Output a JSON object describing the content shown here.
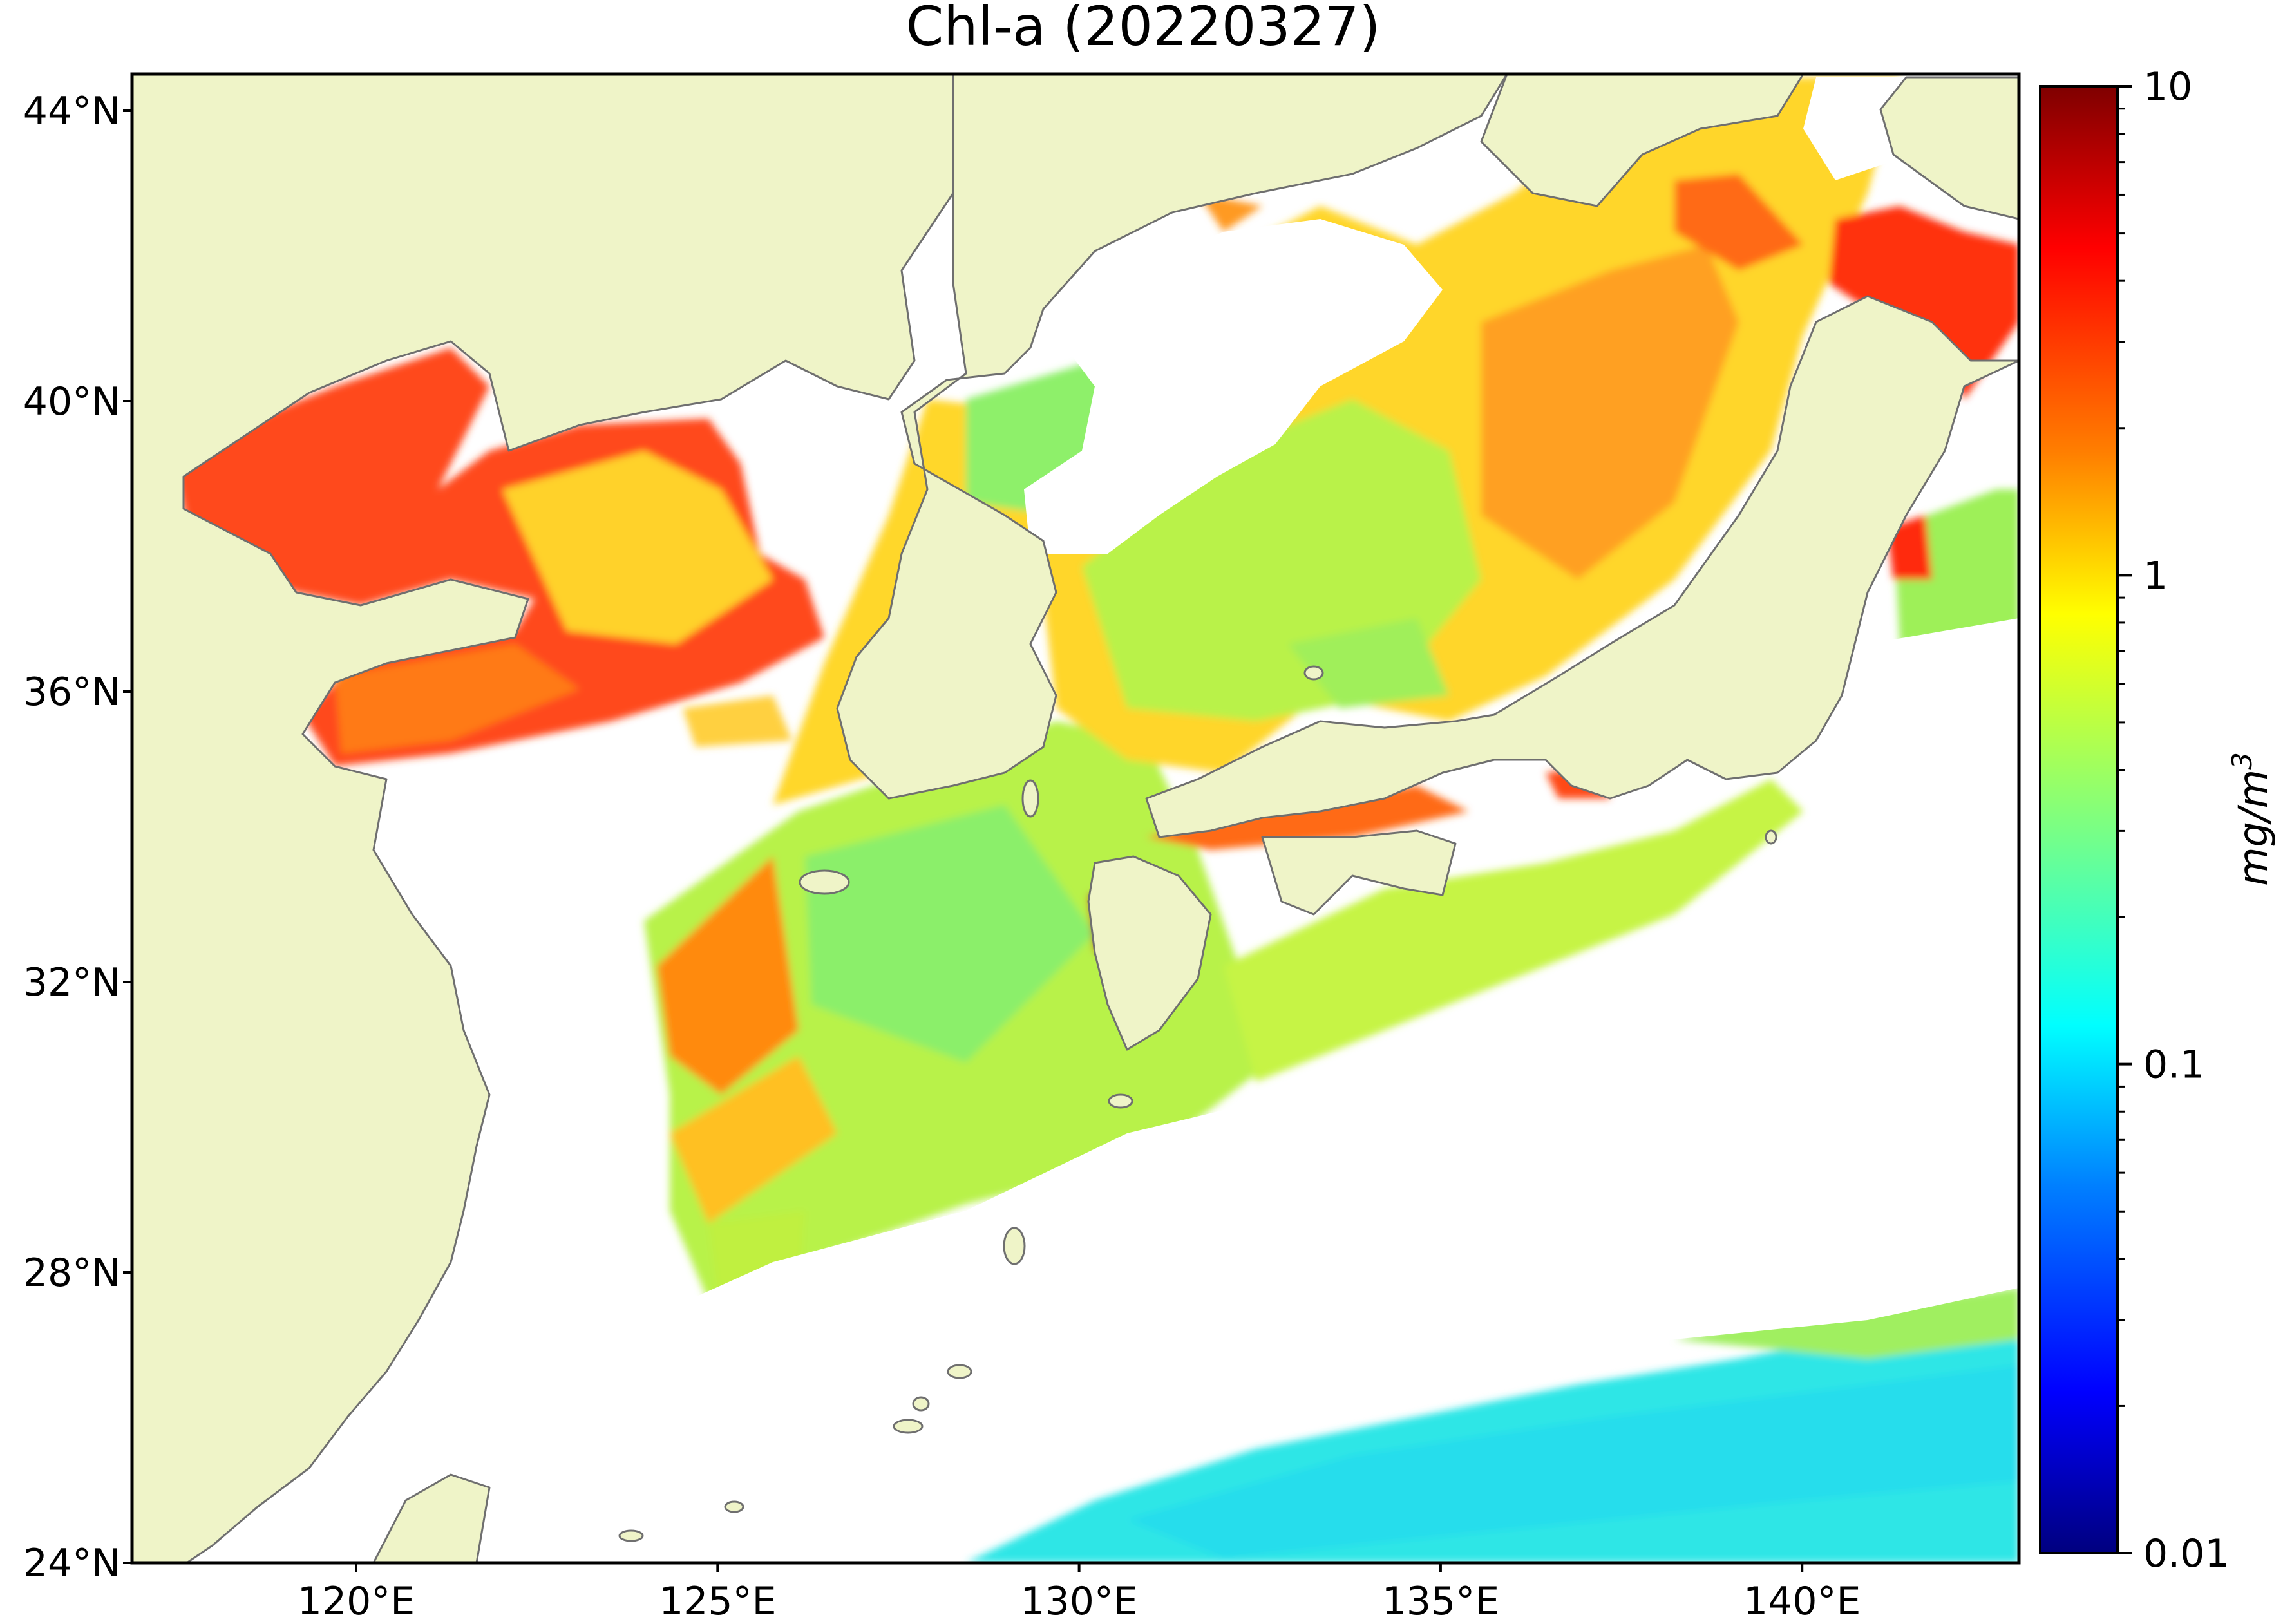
{
  "title": "Chl-a (20220327)",
  "lat_ticks": [
    "24°N",
    "28°N",
    "32°N",
    "36°N",
    "40°N",
    "44°N"
  ],
  "lon_ticks": [
    "120°E",
    "125°E",
    "130°E",
    "135°E",
    "140°E"
  ],
  "colorbar": {
    "label": "mg/m",
    "label_exponent": "3",
    "ticks": [
      "0.01",
      "0.1",
      "1",
      "10"
    ]
  },
  "colors": {
    "land": "#eff4c8",
    "coast": "#6f6f6f",
    "no_data": "#ffffff",
    "colormap": [
      "#00007f",
      "#0000ff",
      "#007fff",
      "#00ffff",
      "#7fff7f",
      "#ffff00",
      "#ff7f00",
      "#ff0000",
      "#7f0000"
    ]
  }
}
